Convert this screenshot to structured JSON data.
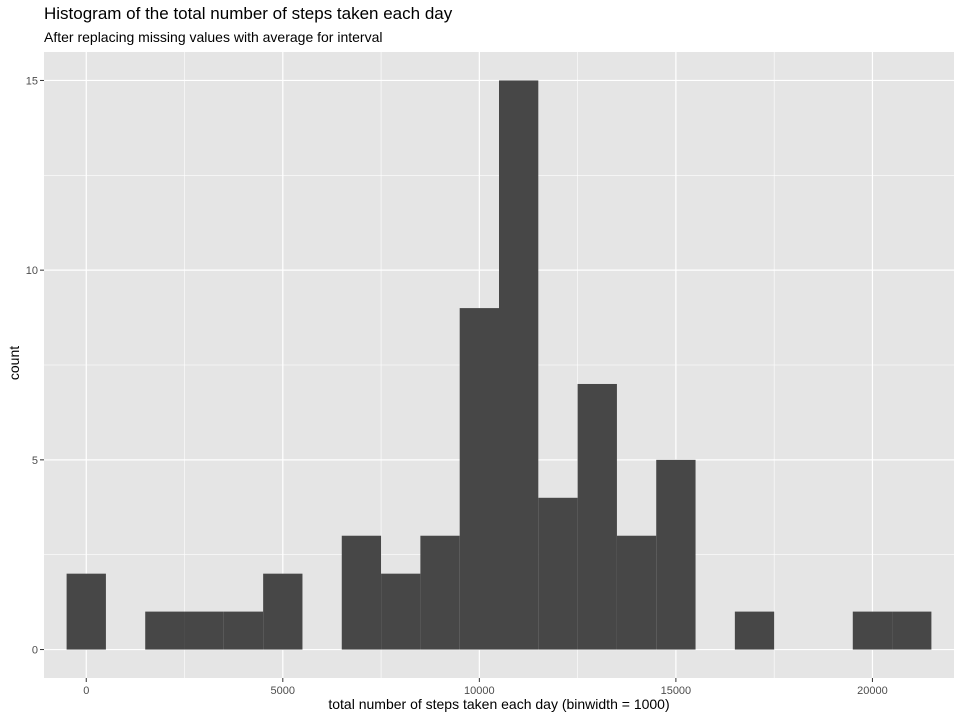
{
  "chart_data": {
    "type": "bar",
    "title": "Histogram of the total number of steps taken each day",
    "subtitle": "After replacing missing values with average for interval",
    "xlabel": "total number of steps taken each day (binwidth = 1000)",
    "ylabel": "count",
    "binwidth": 1000,
    "bins": [
      {
        "center": 0,
        "count": 2
      },
      {
        "center": 1000,
        "count": 0
      },
      {
        "center": 2000,
        "count": 1
      },
      {
        "center": 3000,
        "count": 1
      },
      {
        "center": 4000,
        "count": 1
      },
      {
        "center": 5000,
        "count": 2
      },
      {
        "center": 6000,
        "count": 0
      },
      {
        "center": 7000,
        "count": 3
      },
      {
        "center": 8000,
        "count": 2
      },
      {
        "center": 9000,
        "count": 3
      },
      {
        "center": 10000,
        "count": 9
      },
      {
        "center": 11000,
        "count": 15
      },
      {
        "center": 12000,
        "count": 4
      },
      {
        "center": 13000,
        "count": 7
      },
      {
        "center": 14000,
        "count": 3
      },
      {
        "center": 15000,
        "count": 5
      },
      {
        "center": 16000,
        "count": 0
      },
      {
        "center": 17000,
        "count": 1
      },
      {
        "center": 18000,
        "count": 0
      },
      {
        "center": 19000,
        "count": 0
      },
      {
        "center": 20000,
        "count": 1
      },
      {
        "center": 21000,
        "count": 1
      }
    ],
    "xlim": [
      -1075,
      22075
    ],
    "ylim": [
      -0.75,
      15.75
    ],
    "x_ticks": [
      0,
      5000,
      10000,
      15000,
      20000
    ],
    "x_tick_labels": [
      "0",
      "5000",
      "10000",
      "15000",
      "20000"
    ],
    "y_ticks": [
      0,
      5,
      10,
      15
    ],
    "y_tick_labels": [
      "0",
      "5",
      "10",
      "15"
    ],
    "grid": true,
    "colors": {
      "panel_background": "#e5e5e5",
      "grid": "#ffffff",
      "bar_fill": "#474747",
      "tick_text": "#4d4d4d",
      "tick_mark": "#333333"
    }
  }
}
